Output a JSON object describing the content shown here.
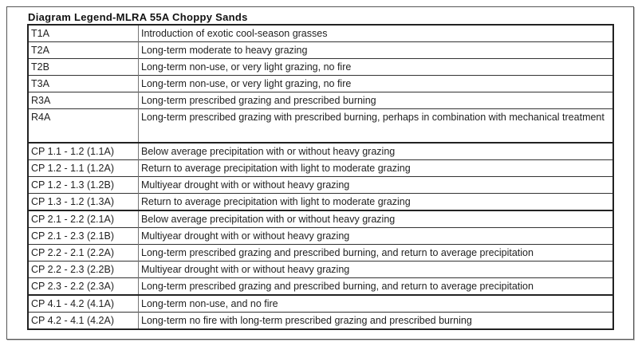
{
  "title": "Diagram Legend-MLRA 55A Choppy Sands",
  "rows": [
    {
      "code": "T1A",
      "description": "Introduction of exotic cool-season grasses"
    },
    {
      "code": "T2A",
      "description": "Long-term moderate to heavy grazing"
    },
    {
      "code": "T2B",
      "description": "Long-term non-use, or very light grazing, no fire"
    },
    {
      "code": "T3A",
      "description": "Long-term non-use, or very light grazing, no fire"
    },
    {
      "code": "R3A",
      "description": "Long-term prescribed grazing and prescribed burning"
    },
    {
      "code": "R4A",
      "description": "Long-term prescribed grazing with prescribed burning, perhaps in combination with mechanical treatment"
    },
    {
      "code": "CP 1.1 - 1.2 (1.1A)",
      "description": "Below average precipitation with or without heavy grazing"
    },
    {
      "code": "CP 1.2 - 1.1 (1.2A)",
      "description": "Return to average precipitation with light to moderate grazing"
    },
    {
      "code": "CP 1.2 - 1.3 (1.2B)",
      "description": "Multiyear drought with or without heavy grazing"
    },
    {
      "code": "CP 1.3 - 1.2 (1.3A)",
      "description": "Return to average precipitation with light to moderate grazing"
    },
    {
      "code": "CP 2.1 - 2.2 (2.1A)",
      "description": "Below average precipitation with or without heavy grazing"
    },
    {
      "code": "CP 2.1 - 2.3 (2.1B)",
      "description": "Multiyear drought with or without heavy grazing"
    },
    {
      "code": "CP 2.2 - 2.1 (2.2A)",
      "description": "Long-term prescribed grazing and prescribed burning, and return to average precipitation"
    },
    {
      "code": "CP 2.2 - 2.3 (2.2B)",
      "description": "Multiyear drought with or without heavy grazing"
    },
    {
      "code": "CP 2.3 - 2.2 (2.3A)",
      "description": "Long-term prescribed grazing and prescribed burning, and return to average precipitation"
    },
    {
      "code": "CP 4.1 - 4.2 (4.1A)",
      "description": "Long-term non-use, and no fire"
    },
    {
      "code": "CP 4.2 - 4.1 (4.2A)",
      "description": "Long-term no fire with long-term prescribed grazing and prescribed burning"
    }
  ]
}
